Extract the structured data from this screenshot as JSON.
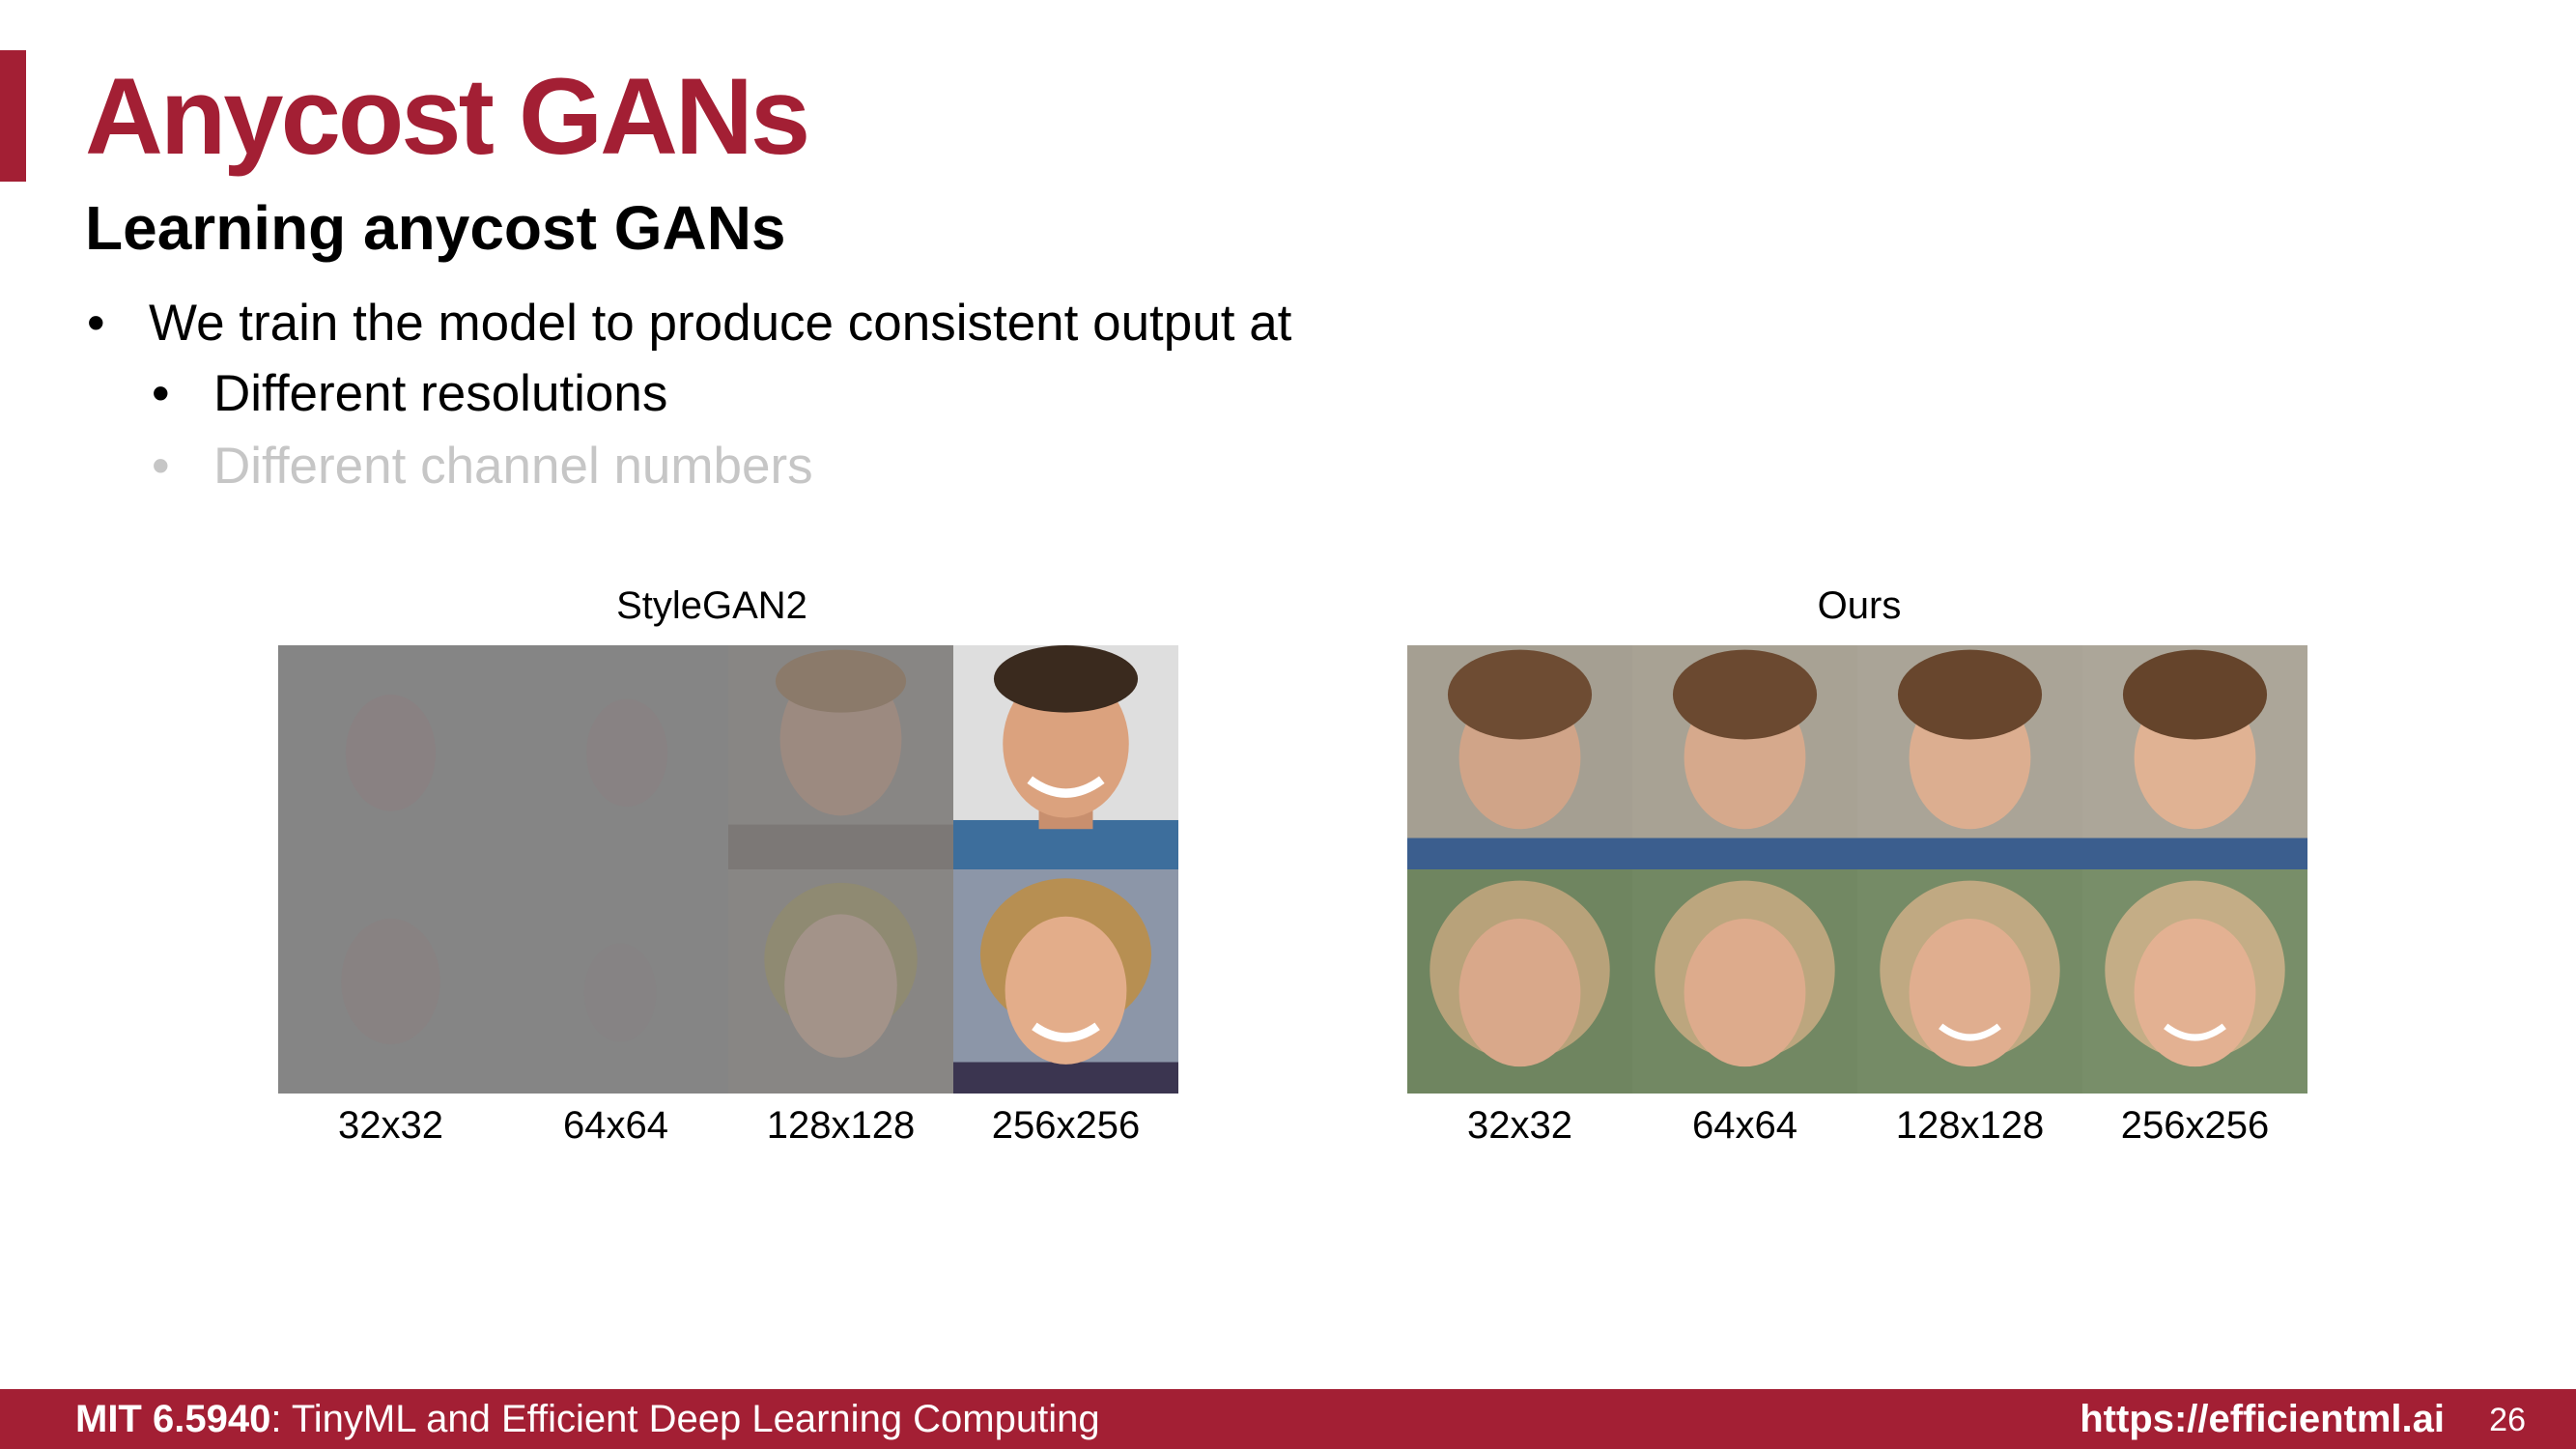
{
  "slide": {
    "title": "Anycost GANs",
    "subtitle": "Learning anycost GANs",
    "bullets": [
      {
        "text": "We train the model to produce consistent output at"
      },
      {
        "text": "Different resolutions"
      },
      {
        "text": "Different channel numbers"
      }
    ]
  },
  "figure": {
    "left": {
      "title": "StyleGAN2",
      "resolutions": [
        "32x32",
        "64x64",
        "128x128",
        "256x256"
      ]
    },
    "right": {
      "title": "Ours",
      "resolutions": [
        "32x32",
        "64x64",
        "128x128",
        "256x256"
      ]
    }
  },
  "footer": {
    "course_code": "MIT 6.5940",
    "course_name": ": TinyML and Efficient Deep Learning Computing",
    "url": "https://efficientml.ai",
    "page_number": "26"
  },
  "colors": {
    "brand": "#a31f34",
    "dimmed_text": "#c6c6c6"
  }
}
